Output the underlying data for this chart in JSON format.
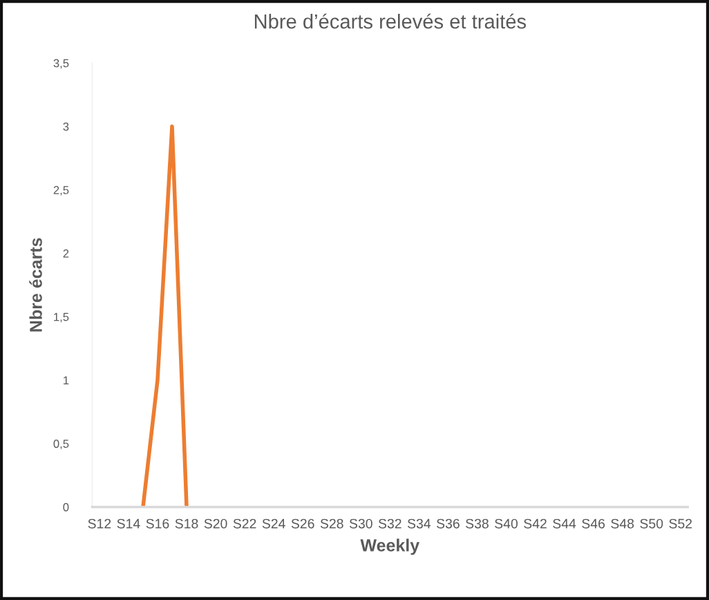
{
  "chart_data": {
    "type": "line",
    "title": "Nbre d’écarts relevés et traités",
    "xlabel": "Weekly",
    "ylabel": "Nbre écarts",
    "categories": [
      "S12",
      null,
      "S14",
      null,
      "S16",
      null,
      "S18",
      null,
      "S20",
      null,
      "S22",
      null,
      "S24",
      null,
      "S26",
      null,
      "S28",
      null,
      "S30",
      null,
      "S32",
      null,
      "S34",
      null,
      "S36",
      null,
      "S38",
      null,
      "S40",
      null,
      "S42",
      null,
      "S44",
      null,
      "S46",
      null,
      "S48",
      null,
      "S50",
      null,
      "S52"
    ],
    "series": [
      {
        "color": "#ed7d31",
        "values": [
          null,
          null,
          null,
          0,
          1,
          3,
          0,
          null,
          null,
          null,
          null,
          null,
          null,
          null,
          null,
          null,
          null,
          null,
          null,
          null,
          null,
          null,
          null,
          null,
          null,
          null,
          null,
          null,
          null,
          null,
          null,
          null,
          null,
          null,
          null,
          null,
          null,
          null,
          null,
          null,
          null
        ]
      }
    ],
    "ylim": [
      0,
      3.5
    ],
    "yticks": [
      0,
      {
        "value": 0.5,
        "label": "0,5"
      },
      1,
      {
        "value": 1.5,
        "label": "1,5"
      },
      2,
      {
        "value": 2.5,
        "label": "2,5"
      },
      3,
      {
        "value": 3.5,
        "label": "3,5"
      }
    ],
    "grid": false,
    "legend": false,
    "marker": "none",
    "line_style": "solid"
  }
}
